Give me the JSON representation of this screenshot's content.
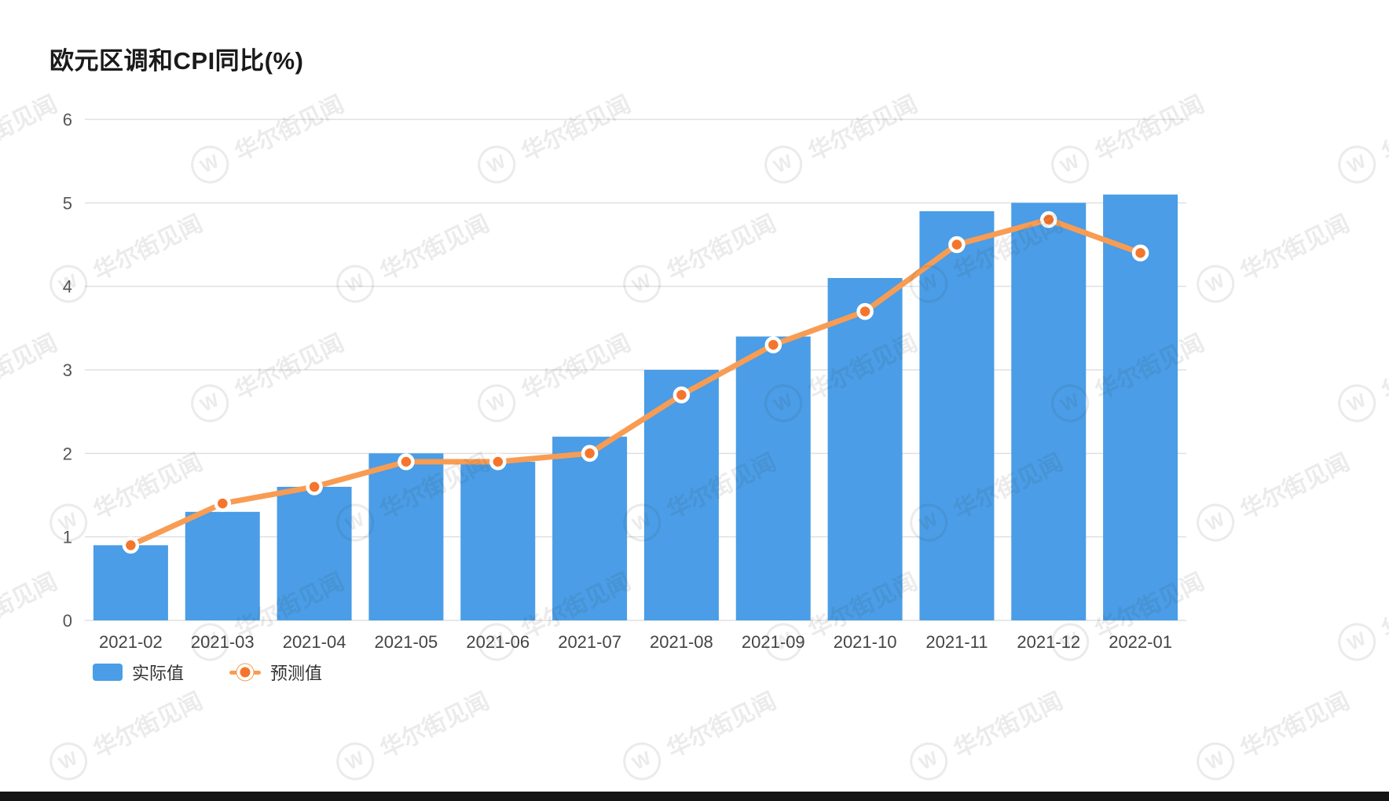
{
  "page": {
    "title": "欧元区调和CPI同比(%)"
  },
  "legend": {
    "actual_label": "实际值",
    "forecast_label": "预测值"
  },
  "watermark": {
    "text": "华尔街见闻",
    "logo_letter": "W"
  },
  "colors": {
    "bar": "#4A9DE6",
    "line": "#F89C53",
    "marker": "#F5752C",
    "grid": "#E0E0E0",
    "ytick_text": "#555555",
    "xtick_text": "#444444",
    "title_text": "#1A1A1A",
    "bottom_bar": "#141414"
  },
  "chart_data": {
    "type": "bar",
    "title": "欧元区调和CPI同比(%)",
    "categories": [
      "2021-02",
      "2021-03",
      "2021-04",
      "2021-05",
      "2021-06",
      "2021-07",
      "2021-08",
      "2021-09",
      "2021-10",
      "2021-11",
      "2021-12",
      "2022-01"
    ],
    "series": [
      {
        "name": "实际值",
        "type": "bar",
        "values": [
          0.9,
          1.3,
          1.6,
          2.0,
          1.9,
          2.2,
          3.0,
          3.4,
          4.1,
          4.9,
          5.0,
          5.1
        ]
      },
      {
        "name": "预测值",
        "type": "line",
        "values": [
          0.9,
          1.4,
          1.6,
          1.9,
          1.9,
          2.0,
          2.7,
          3.3,
          3.7,
          4.5,
          4.8,
          4.4
        ]
      }
    ],
    "xlabel": "",
    "ylabel": "",
    "ylim": [
      0,
      6
    ],
    "yticks": [
      0,
      1,
      2,
      3,
      4,
      5,
      6
    ],
    "grid": true,
    "legend_position": "bottom-left"
  }
}
